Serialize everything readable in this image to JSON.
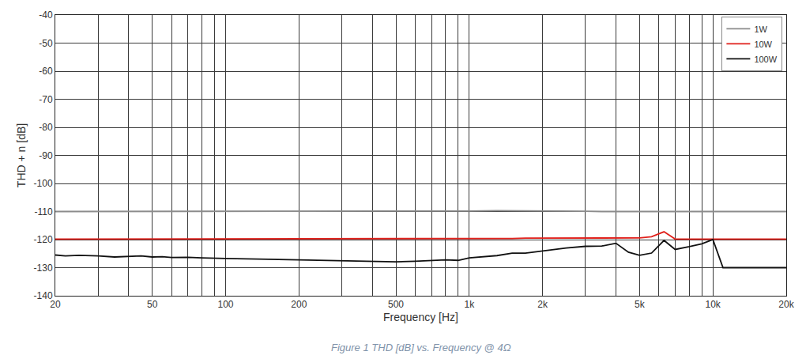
{
  "chart_data": {
    "type": "line",
    "title": "Figure 1 THD [dB] vs. Frequency @ 4Ω",
    "x_label": "Frequency [Hz]",
    "y_label": "THD + n [dB]",
    "log": "x",
    "grid": true,
    "legend": "top right",
    "xlim": [
      20,
      20000
    ],
    "ylim": [
      -140,
      -40
    ],
    "xticks": [
      20,
      50,
      100,
      200,
      500,
      {
        "value": 1000,
        "label": "1k"
      },
      {
        "value": 2000,
        "label": "2k"
      },
      {
        "value": 5000,
        "label": "5k"
      },
      {
        "value": 10000,
        "label": "10k"
      },
      {
        "value": 20000,
        "label": "20k"
      }
    ],
    "yticks": [
      -140,
      -130,
      -120,
      -110,
      -100,
      -90,
      -80,
      -70,
      -60,
      -50,
      -40
    ],
    "x": [
      20,
      22,
      25,
      30,
      35,
      40,
      45,
      50,
      55,
      60,
      70,
      80,
      90,
      100,
      150,
      200,
      300,
      400,
      500,
      600,
      700,
      800,
      900,
      1000,
      1300,
      1500,
      1700,
      2000,
      2500,
      3000,
      3500,
      4000,
      4500,
      5000,
      5600,
      6300,
      7000,
      8000,
      9000,
      10000,
      11000,
      15000,
      20000
    ],
    "series": [
      {
        "name": "1W",
        "color": "#8c8c8c",
        "values": [
          -110,
          -110,
          -110,
          -110,
          -110,
          -110,
          -110,
          -110,
          -110,
          -110,
          -110,
          -110,
          -110,
          -110,
          -110,
          -110,
          -110,
          -110,
          -110,
          -110,
          -110,
          -110,
          -110,
          -109.8,
          -109.7,
          -109.7,
          -109.8,
          -109.8,
          -109.8,
          -109.9,
          -110,
          -110,
          -110,
          -110,
          -110,
          -110,
          -110,
          -110,
          -110,
          -110,
          -110,
          -110,
          -110
        ]
      },
      {
        "name": "10W",
        "color": "#e0201b",
        "values": [
          -119.8,
          -119.8,
          -119.8,
          -119.7,
          -119.7,
          -119.7,
          -119.7,
          -119.8,
          -119.7,
          -119.8,
          -119.8,
          -119.8,
          -119.8,
          -119.8,
          -119.8,
          -119.8,
          -119.8,
          -119.8,
          -119.8,
          -119.8,
          -119.7,
          -119.7,
          -119.6,
          -119.6,
          -119.6,
          -119.6,
          -119.5,
          -119.5,
          -119.4,
          -119.4,
          -119.5,
          -119.5,
          -119.5,
          -119.4,
          -119,
          -117.2,
          -119.8,
          -119.8,
          -119.8,
          -119.8,
          -119.8,
          -119.8,
          -119.8
        ]
      },
      {
        "name": "100W",
        "color": "#111111",
        "values": [
          -125.5,
          -125.8,
          -125.6,
          -125.8,
          -126.2,
          -125.9,
          -125.8,
          -126.2,
          -126.1,
          -126.4,
          -126.3,
          -126.5,
          -126.7,
          -126.7,
          -127,
          -127.2,
          -127.4,
          -127.6,
          -127.9,
          -127.7,
          -127.5,
          -127.2,
          -127.4,
          -126.5,
          -125.7,
          -124.8,
          -124.8,
          -124,
          -123,
          -122.4,
          -122.3,
          -121.3,
          -124.5,
          -125.6,
          -124.8,
          -120.3,
          -123.5,
          -122.5,
          -121.5,
          -120,
          -130,
          -130,
          -130
        ]
      }
    ]
  }
}
